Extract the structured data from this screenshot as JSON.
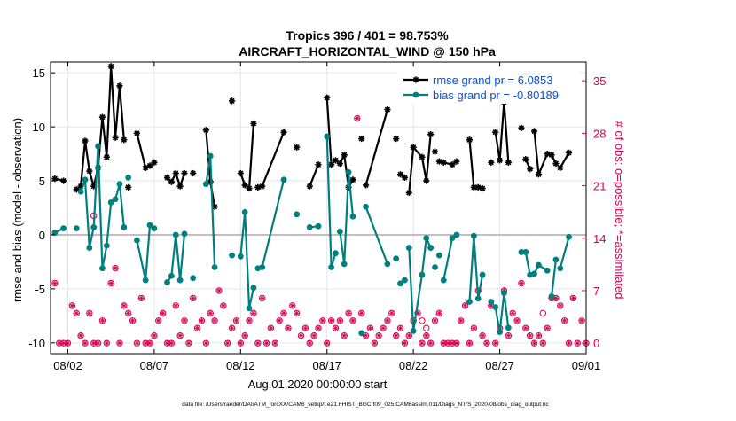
{
  "figure": {
    "title_line1": "Tropics 396 / 401 = 98.753%",
    "title_line2": "AIRCRAFT_HORIZONTAL_WIND @ 150 hPa",
    "footer": "data file: /Users/raeder/DAI/ATM_forcXX/CAM6_setup/f.e21.FHIST_BGC.f09_025.CAM6assim.011/Diags_NTrS_2020-08/obs_diag_output.nc",
    "colors": {
      "rmse": "#000000",
      "bias": "#007f7f",
      "obs": "#d6004f",
      "legend_text": "#0b4fd6",
      "zero_line": "#c8bcbc",
      "grid": "#e6e6e6"
    }
  },
  "chart_data": {
    "type": "line",
    "title": "Tropics 396 / 401 = 98.753%",
    "subtitle": "AIRCRAFT_HORIZONTAL_WIND @ 150 hPa",
    "xlabel": "Aug.01,2020 00:00:00 start",
    "ylabel_left": "rmse and bias (model - observation)",
    "ylabel_right": "# of obs: o=possible; *=assimilated",
    "x_ticks": [
      "08/02",
      "08/07",
      "08/12",
      "08/17",
      "08/22",
      "08/27",
      "09/01"
    ],
    "x_tick_days": [
      1,
      6,
      11,
      16,
      21,
      26,
      31
    ],
    "xlim_days": [
      0,
      31
    ],
    "ylim_left": [
      -11,
      16
    ],
    "y_ticks_left": [
      "-10",
      "-5",
      "0",
      "5",
      "10",
      "15"
    ],
    "ylim_right": [
      -1.4,
      37.5
    ],
    "y_ticks_right": [
      "0",
      "7",
      "14",
      "21",
      "28",
      "35"
    ],
    "grid": true,
    "legend_position": "top-right",
    "series": [
      {
        "name": "rmse grand pr = 6.0853",
        "axis": "left",
        "marker": "asterisk",
        "x": [
          0.25,
          0.75,
          1.5,
          1.75,
          2.0,
          2.25,
          2.5,
          2.75,
          3.0,
          3.25,
          3.5,
          3.75,
          4.0,
          4.25,
          4.5,
          5.0,
          5.5,
          5.75,
          6.0,
          6.75,
          7.0,
          7.25,
          7.5,
          7.75,
          8.25,
          9.0,
          9.25,
          9.5,
          10.5,
          11.0,
          11.25,
          11.5,
          11.75,
          12.0,
          12.25,
          13.5,
          14.25,
          15.0,
          15.5,
          16.0,
          16.25,
          16.5,
          16.75,
          17.0,
          17.25,
          17.5,
          18.0,
          18.25,
          19.5,
          20.0,
          20.25,
          20.5,
          20.75,
          21.0,
          21.5,
          21.75,
          22.0,
          22.25,
          22.5,
          22.75,
          23.25,
          23.5,
          24.25,
          24.5,
          24.75,
          25.0,
          25.5,
          25.75,
          26.0,
          26.25,
          26.5,
          27.25,
          27.5,
          27.75,
          28.0,
          28.25,
          28.75,
          29.0,
          29.25,
          29.5,
          30.0,
          30.5,
          30.75,
          31.0
        ],
        "y": [
          5.2,
          5.0,
          4.2,
          4.5,
          8.7,
          5.9,
          4.5,
          6.2,
          10.9,
          7.2,
          15.6,
          9.0,
          13.8,
          8.8,
          4.4,
          9.4,
          6.2,
          6.4,
          6.7,
          5.3,
          4.9,
          5.7,
          4.5,
          5.7,
          5.7,
          9.7,
          4.9,
          2.6,
          12.4,
          5.7,
          4.6,
          4.3,
          10.3,
          4.4,
          4.5,
          9.5,
          8.1,
          4.5,
          6.5,
          12.7,
          6.5,
          6.9,
          6.6,
          7.4,
          4.4,
          5.1,
          8.9,
          4.6,
          11.6,
          8.9,
          5.6,
          5.3,
          3.9,
          8.1,
          7.2,
          5.0,
          9.3,
          7.7,
          6.8,
          6.7,
          6.5,
          6.8,
          8.8,
          4.4,
          4.4,
          4.3,
          6.7,
          9.5,
          6.9,
          12.3,
          6.7,
          9.9,
          7.0,
          6.1,
          9.6,
          5.6,
          7.5,
          7.4,
          6.6,
          6.2,
          7.6,
          8.3,
          9.2,
          4.1
        ],
        "segments": [
          2,
          1,
          11,
          1,
          3,
          1,
          5,
          1,
          3,
          1,
          4,
          1,
          2,
          1,
          2,
          3,
          4,
          1,
          2,
          1,
          1,
          1,
          5,
          1,
          1,
          3,
          4,
          1,
          4,
          1,
          2,
          3,
          2,
          2
        ]
      },
      {
        "name": "bias grand pr = -0.80189",
        "axis": "left",
        "marker": "circle",
        "x": [
          0.25,
          0.75,
          1.5,
          1.75,
          2.0,
          2.25,
          2.5,
          2.75,
          3.0,
          3.25,
          3.5,
          3.75,
          4.0,
          4.25,
          4.5,
          5.0,
          5.5,
          5.75,
          6.0,
          6.75,
          7.0,
          7.25,
          7.5,
          7.75,
          8.25,
          9.0,
          9.25,
          9.5,
          10.5,
          11.0,
          11.25,
          11.5,
          11.75,
          12.0,
          12.25,
          13.5,
          14.25,
          15.0,
          15.5,
          16.0,
          16.25,
          16.5,
          16.75,
          17.0,
          17.25,
          17.5,
          18.0,
          18.25,
          19.5,
          20.0,
          20.25,
          20.5,
          20.75,
          21.0,
          21.5,
          21.75,
          22.0,
          22.25,
          22.5,
          22.75,
          23.25,
          23.5,
          24.25,
          24.5,
          24.75,
          25.0,
          25.5,
          25.75,
          26.0,
          26.25,
          26.5,
          27.25,
          27.5,
          27.75,
          28.0,
          28.25,
          28.75,
          29.0,
          29.25,
          29.5,
          30.0,
          30.5,
          30.75,
          31.0
        ],
        "y": [
          0.2,
          0.6,
          0.6,
          4.0,
          5.1,
          -1.2,
          0.7,
          8.2,
          -3.1,
          -1.0,
          3.0,
          3.3,
          4.7,
          0.7,
          5.3,
          -0.5,
          -4.2,
          0.9,
          0.6,
          -4.4,
          -3.8,
          0.0,
          -4.2,
          0.1,
          -4.0,
          4.7,
          7.3,
          -3.0,
          -1.9,
          -2.0,
          2.1,
          -6.8,
          -4.9,
          -3.1,
          -3.0,
          5.1,
          1.9,
          0.7,
          0.8,
          9.1,
          -3.0,
          -1.7,
          0.3,
          -2.7,
          5.8,
          1.7,
          -9.1,
          2.6,
          -2.7,
          -2.2,
          -4.5,
          -4.2,
          -1.2,
          -8.9,
          -3.7,
          -0.3,
          -1.2,
          -3.0,
          -1.9,
          -4.2,
          -0.3,
          0.0,
          -6.2,
          -0.1,
          -5.9,
          -3.7,
          -6.2,
          -6.7,
          -9.0,
          -5.4,
          -8.6,
          -1.6,
          -1.6,
          -3.7,
          -3.6,
          -2.8,
          -3.3,
          -5.7,
          -2.3,
          -3.1,
          -0.2,
          0.8,
          0.2,
          0.3
        ],
        "segments": [
          2,
          1,
          11,
          1,
          3,
          1,
          5,
          1,
          3,
          1,
          4,
          1,
          2,
          1,
          2,
          3,
          4,
          1,
          2,
          1,
          1,
          1,
          5,
          1,
          1,
          3,
          4,
          1,
          4,
          1,
          2,
          3,
          2,
          2
        ]
      },
      {
        "name": "obs possible / assimilated",
        "axis": "right",
        "marker": "circle-asterisk",
        "x": [
          0.25,
          0.5,
          0.75,
          1.0,
          1.25,
          1.5,
          1.75,
          2.0,
          2.25,
          2.5,
          2.75,
          3.0,
          3.25,
          3.5,
          3.75,
          4.0,
          4.25,
          4.5,
          4.75,
          5.0,
          5.25,
          5.5,
          5.75,
          6.0,
          6.25,
          6.5,
          6.75,
          7.0,
          7.25,
          7.5,
          7.75,
          8.0,
          8.25,
          8.5,
          8.75,
          9.0,
          9.25,
          9.5,
          9.75,
          10.0,
          10.25,
          10.5,
          10.75,
          11.0,
          11.25,
          11.5,
          11.75,
          12.0,
          12.25,
          12.5,
          12.75,
          13.0,
          13.25,
          13.5,
          13.75,
          14.0,
          14.25,
          14.5,
          14.75,
          15.0,
          15.25,
          15.5,
          15.75,
          16.0,
          16.25,
          16.5,
          16.75,
          17.0,
          17.25,
          17.5,
          17.75,
          18.0,
          18.25,
          18.5,
          18.75,
          19.0,
          19.25,
          19.5,
          19.75,
          20.0,
          20.25,
          20.5,
          20.75,
          21.0,
          21.25,
          21.5,
          21.75,
          22.0,
          22.25,
          22.5,
          22.75,
          23.0,
          23.25,
          23.5,
          23.75,
          24.0,
          24.25,
          24.5,
          24.75,
          25.0,
          25.25,
          25.5,
          25.75,
          26.0,
          26.25,
          26.5,
          26.75,
          27.0,
          27.25,
          27.5,
          27.75,
          28.0,
          28.25,
          28.5,
          28.75,
          29.0,
          29.25,
          29.5,
          29.75,
          30.0,
          30.25,
          30.5,
          30.75,
          31.0
        ],
        "y": [
          8,
          0,
          0,
          0,
          5,
          4,
          1,
          0,
          4,
          0,
          0,
          3,
          0,
          8,
          10,
          0,
          5,
          4,
          3,
          0,
          6,
          0,
          0,
          1,
          3,
          4,
          0,
          0,
          5,
          1,
          3,
          0,
          6,
          2,
          3,
          0,
          4,
          3,
          7,
          5,
          0,
          2,
          3,
          0,
          1,
          3,
          4,
          0,
          6,
          0,
          2,
          0,
          3,
          4,
          2,
          5,
          4,
          1,
          2,
          0,
          1,
          2,
          3,
          0,
          3,
          2,
          3,
          1,
          4,
          3,
          30,
          4,
          1,
          2,
          0,
          1,
          2,
          3,
          4,
          1,
          2,
          0,
          1,
          3,
          4,
          0,
          1,
          0,
          3,
          4,
          0,
          0,
          0,
          0,
          3,
          5,
          0,
          2,
          7,
          1,
          0,
          5,
          0,
          2,
          7,
          1,
          4,
          3,
          8,
          2,
          1,
          0,
          1,
          0,
          2,
          6,
          6,
          5,
          3,
          0,
          6,
          0,
          3,
          0
        ],
        "highlight_possible": [
          [
            2.5,
            17
          ],
          [
            21.5,
            3
          ],
          [
            21.75,
            2
          ],
          [
            28.5,
            4
          ]
        ]
      }
    ]
  }
}
